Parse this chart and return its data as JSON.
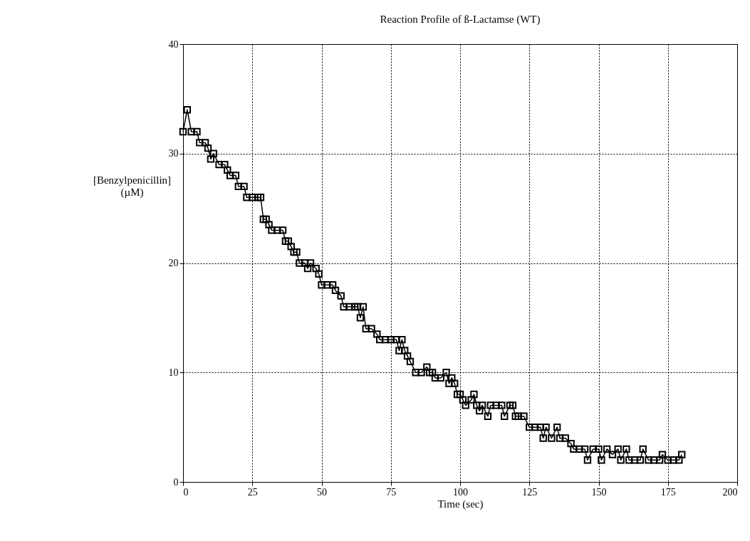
{
  "chart_data": {
    "type": "line",
    "title": "Reaction Profile of ß-Lactamse (WT)",
    "xlabel": "Time (sec)",
    "ylabel": "[Benzylpenicillin]\n(µM)",
    "xlim": [
      0,
      200
    ],
    "xticks": [
      0,
      25,
      50,
      75,
      100,
      125,
      150,
      175,
      200
    ],
    "ylim": [
      0,
      40
    ],
    "yticks": [
      0,
      10,
      20,
      30,
      40
    ],
    "grid": true,
    "marker": "square",
    "line_style": "solid",
    "series": [
      {
        "color": "#000000",
        "x": [
          0,
          1.5,
          3,
          5,
          6,
          8,
          9,
          10,
          11,
          13,
          15,
          16,
          17,
          19,
          20,
          22,
          23,
          25,
          27,
          28,
          29,
          30,
          31,
          32,
          34,
          36,
          37,
          38,
          39,
          40,
          41,
          42,
          44,
          45,
          46,
          48,
          49,
          50,
          52,
          54,
          55,
          57,
          58,
          60,
          62,
          63,
          64,
          65,
          66,
          68,
          70,
          71,
          73,
          75,
          77,
          78,
          79,
          80,
          81,
          82,
          84,
          86,
          88,
          89,
          90,
          91,
          93,
          95,
          96,
          97,
          98,
          99,
          100,
          101,
          102,
          104,
          105,
          106,
          107,
          108,
          110,
          111,
          113,
          115,
          116,
          118,
          119,
          120,
          121,
          123,
          125,
          127,
          129,
          130,
          131,
          133,
          135,
          136,
          138,
          140,
          141,
          143,
          145,
          146,
          148,
          150,
          151,
          153,
          155,
          157,
          158,
          160,
          161,
          163,
          165,
          166,
          168,
          170,
          172,
          173,
          175,
          177,
          179,
          180
        ],
        "values": [
          32,
          34,
          32,
          32,
          31,
          31,
          30.5,
          29.5,
          30,
          29,
          29,
          28.5,
          28,
          28,
          27,
          27,
          26,
          26,
          26,
          26,
          24,
          24,
          23.5,
          23,
          23,
          23,
          22,
          22,
          21.5,
          21,
          21,
          20,
          20,
          19.5,
          20,
          19.5,
          19,
          18,
          18,
          18,
          17.5,
          17,
          16,
          16,
          16,
          16,
          15,
          16,
          14,
          14,
          13.5,
          13,
          13,
          13,
          13,
          12,
          13,
          12,
          11.5,
          11,
          10,
          10,
          10.5,
          10,
          10,
          9.5,
          9.5,
          10,
          9,
          9.5,
          9,
          8,
          8,
          7.5,
          7,
          7.5,
          8,
          7,
          6.5,
          7,
          6,
          7,
          7,
          7,
          6,
          7,
          7,
          6,
          6,
          6,
          5,
          5,
          5,
          4,
          5,
          4,
          5,
          4,
          4,
          3.5,
          3,
          3,
          3,
          2,
          3,
          3,
          2,
          3,
          2.5,
          3,
          2,
          3,
          2,
          2,
          2,
          3,
          2,
          2,
          2,
          2.5,
          2,
          2,
          2,
          2.5
        ]
      }
    ]
  }
}
